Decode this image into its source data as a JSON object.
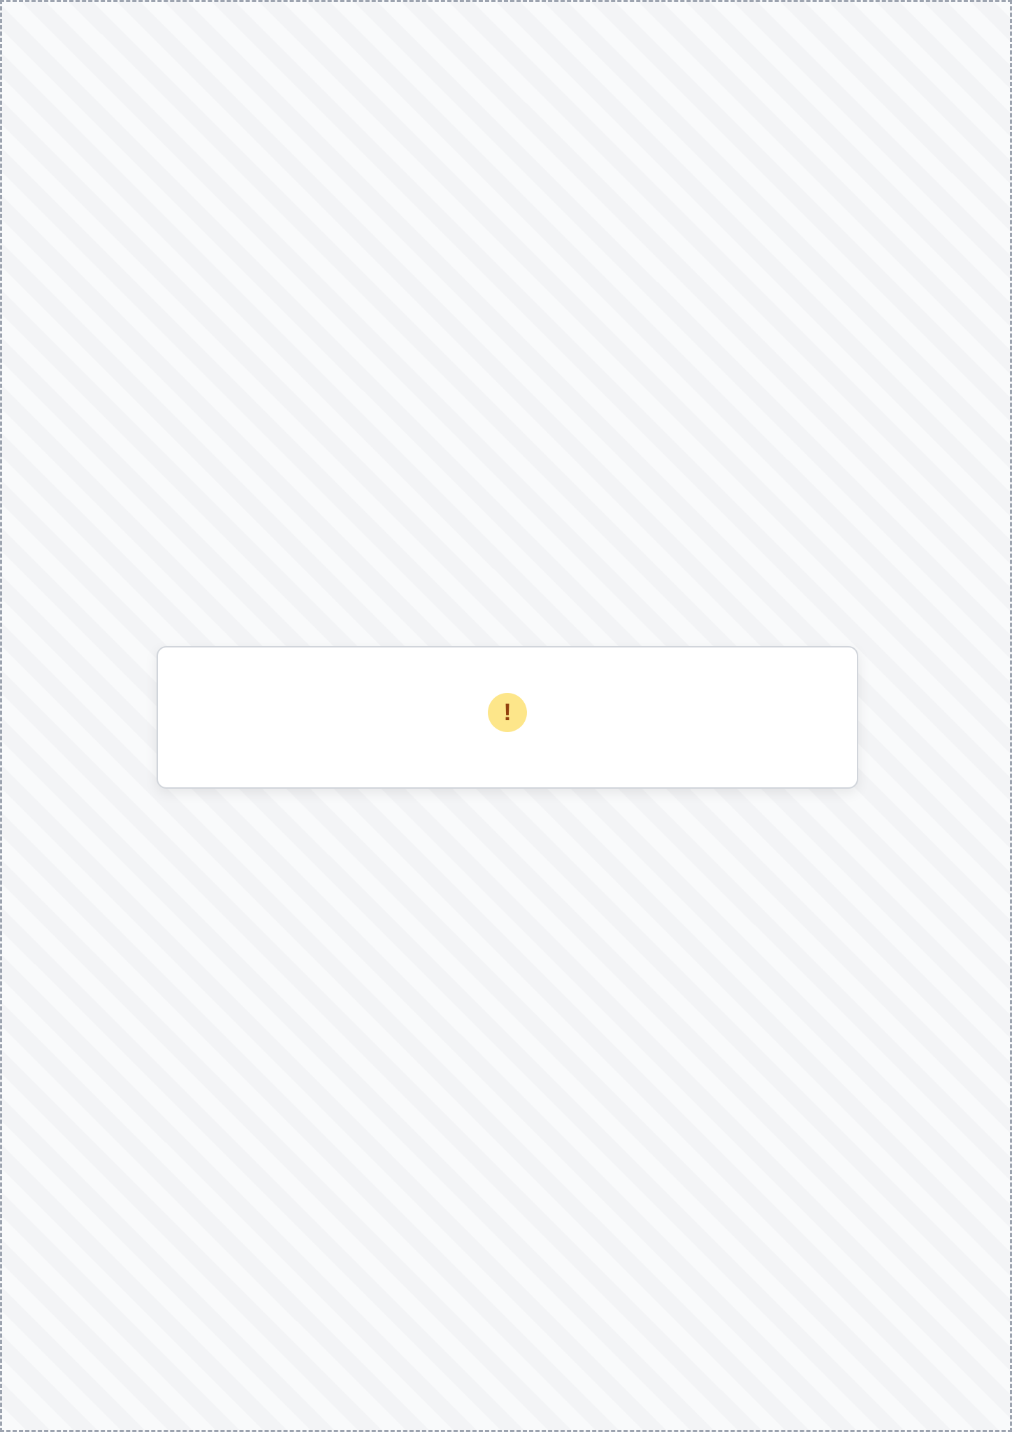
{
  "notice": {
    "icon": "warning-icon",
    "text": ""
  }
}
